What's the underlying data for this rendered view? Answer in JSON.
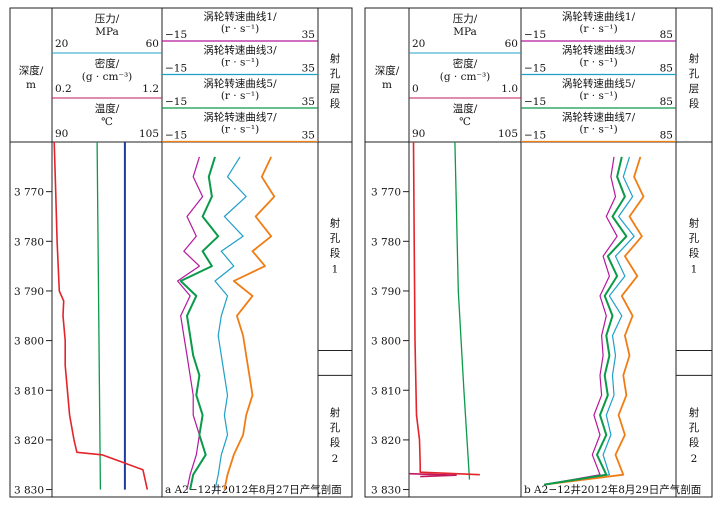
{
  "colors": {
    "pressure": "#1f3a9a",
    "density": "#c2185b",
    "temperature": "#e3242b",
    "green": "#0a9a4a",
    "rpm1": "#b5179e",
    "rpm3": "#1fa0c8",
    "rpm5": "#0a9a4a",
    "rpm7": "#f07d14",
    "pressureHdr": "#1fa0c8",
    "densityHdr": "#c2185b"
  },
  "chart_data": [
    {
      "type": "line",
      "panel": "a",
      "caption": "a  A2−12井2012年8月27日产气剖面",
      "depth": {
        "label": "深度/",
        "unit": "m",
        "ticks": [
          "3 770",
          "3 780",
          "3 790",
          "3 800",
          "3 810",
          "3 820",
          "3 830"
        ],
        "tick_values": [
          3770,
          3780,
          3790,
          3800,
          3810,
          3820,
          3830
        ],
        "range": [
          3760,
          3831.5
        ]
      },
      "tracks": {
        "pressure": {
          "label": "压力/",
          "unit": "MPa",
          "min": "20",
          "max": "60",
          "range": [
            20,
            60
          ]
        },
        "density": {
          "label": "密度/",
          "unit": "(g · cm⁻³)",
          "min": "0.2",
          "max": "1.2",
          "range": [
            0.2,
            1.2
          ]
        },
        "temperature": {
          "label": "温度/",
          "unit": "℃",
          "min": "90",
          "max": "105",
          "range": [
            90,
            105
          ]
        },
        "rpm": [
          {
            "label": "涡轮转速曲线1/",
            "unit": "(r · s⁻¹)",
            "min": "−15",
            "max": "35",
            "range": [
              -15,
              35
            ]
          },
          {
            "label": "涡轮转速曲线3/",
            "unit": "(r · s⁻¹)",
            "min": "−15",
            "max": "35",
            "range": [
              -15,
              35
            ]
          },
          {
            "label": "涡轮转速曲线5/",
            "unit": "(r · s⁻¹)",
            "min": "−15",
            "max": "35",
            "range": [
              -15,
              35
            ]
          },
          {
            "label": "涡轮转速曲线7/",
            "unit": "(r · s⁻¹)",
            "min": "−15",
            "max": "35",
            "range": [
              -15,
              35
            ]
          }
        ]
      },
      "zones_header": "射孔层段",
      "zones": [
        {
          "label_chars": [
            "射",
            "孔",
            "段"
          ],
          "index": "1",
          "top": 3760,
          "bottom": 3802
        },
        {
          "label_chars": [
            "射",
            "孔",
            "段"
          ],
          "index": "2",
          "top": 3807,
          "bottom": 3831.5
        }
      ],
      "series": {
        "pressure": {
          "depth": [
            3760,
            3830
          ],
          "value": [
            46.5,
            46.5
          ]
        },
        "green_line": {
          "depth": [
            3760,
            3830
          ],
          "value": [
            0.61,
            0.64
          ]
        },
        "temperature": {
          "depth": [
            3760,
            3770,
            3780,
            3790,
            3792,
            3795,
            3800,
            3805,
            3810,
            3815,
            3820,
            3822.5,
            3823,
            3826,
            3830
          ],
          "value": [
            90.3,
            90.5,
            90.7,
            91.0,
            91.6,
            91.5,
            91.8,
            91.8,
            92.1,
            92.4,
            93.0,
            93.4,
            96.8,
            102.4,
            103.0
          ]
        },
        "rpm1": {
          "depth": [
            3763,
            3767,
            3771,
            3775,
            3779,
            3782,
            3785,
            3788,
            3791,
            3795,
            3799,
            3803,
            3807,
            3811,
            3815,
            3819,
            3823,
            3827,
            3830
          ],
          "value": [
            -3,
            -5,
            -2,
            -7,
            -4,
            -8,
            -3,
            -10,
            -6,
            -9,
            -8,
            -7,
            -6,
            -5,
            -5,
            -3,
            -4,
            -6,
            -7
          ]
        },
        "rpm3": {
          "depth": [
            3763,
            3767,
            3771,
            3775,
            3779,
            3782,
            3785,
            3788,
            3791,
            3795,
            3799,
            3803,
            3807,
            3811,
            3815,
            3819,
            3823,
            3827,
            3830
          ],
          "value": [
            10,
            6,
            12,
            5,
            11,
            4,
            8,
            2,
            6,
            4,
            3,
            4,
            5,
            6,
            5,
            6,
            4,
            3,
            2
          ]
        },
        "rpm5": {
          "depth": [
            3763,
            3767,
            3771,
            3775,
            3779,
            3782,
            3785,
            3788,
            3791,
            3795,
            3799,
            3803,
            3807,
            3811,
            3815,
            3819,
            3823,
            3827,
            3830
          ],
          "value": [
            2,
            0,
            1,
            -2,
            3,
            -2,
            1,
            -9,
            -4,
            -7,
            -6,
            -5,
            -3,
            -4,
            -2,
            -3,
            -1,
            -5,
            -6
          ]
        },
        "rpm7": {
          "depth": [
            3763,
            3767,
            3771,
            3775,
            3779,
            3782,
            3785,
            3788,
            3791,
            3795,
            3799,
            3803,
            3807,
            3811,
            3815,
            3819,
            3823,
            3827,
            3830
          ],
          "value": [
            20,
            17,
            21,
            15,
            20,
            14,
            18,
            8,
            14,
            9,
            11,
            12,
            13,
            14,
            12,
            11,
            8,
            6,
            5
          ]
        }
      }
    },
    {
      "type": "line",
      "panel": "b",
      "caption": "b  A2−12井2012年8月29日产气剖面",
      "depth": {
        "label": "深度/",
        "unit": "m",
        "ticks": [
          "3 770",
          "3 780",
          "3 790",
          "3 800",
          "3 810",
          "3 820",
          "3 830"
        ],
        "tick_values": [
          3770,
          3780,
          3790,
          3800,
          3810,
          3820,
          3830
        ],
        "range": [
          3760,
          3831.5
        ]
      },
      "tracks": {
        "pressure": {
          "label": "压力/",
          "unit": "MPa",
          "min": "20",
          "max": "60",
          "range": [
            20,
            60
          ]
        },
        "density": {
          "label": "密度/",
          "unit": "(g · cm⁻³)",
          "min": "0",
          "max": "1.0",
          "range": [
            0,
            1.0
          ]
        },
        "temperature": {
          "label": "温度/",
          "unit": "℃",
          "min": "90",
          "max": "105",
          "range": [
            90,
            105
          ]
        },
        "rpm": [
          {
            "label": "涡轮转速曲线1/",
            "unit": "(r · s⁻¹)",
            "min": "−15",
            "max": "85",
            "range": [
              -15,
              85
            ]
          },
          {
            "label": "涡轮转速曲线3/",
            "unit": "(r · s⁻¹)",
            "min": "−15",
            "max": "85",
            "range": [
              -15,
              85
            ]
          },
          {
            "label": "涡轮转速曲线5/",
            "unit": "(r · s⁻¹)",
            "min": "−15",
            "max": "85",
            "range": [
              -15,
              85
            ]
          },
          {
            "label": "涡轮转速曲线7/",
            "unit": "(r · s⁻¹)",
            "min": "−15",
            "max": "85",
            "range": [
              -15,
              85
            ]
          }
        ]
      },
      "zones_header": "射孔层段",
      "zones": [
        {
          "label_chars": [
            "射",
            "孔",
            "段"
          ],
          "index": "1",
          "top": 3760,
          "bottom": 3802
        },
        {
          "label_chars": [
            "射",
            "孔",
            "段"
          ],
          "index": "2",
          "top": 3807,
          "bottom": 3831.5
        }
      ],
      "series": {
        "green_line": {
          "depth": [
            3760,
            3790,
            3810,
            3828
          ],
          "value": [
            0.41,
            0.44,
            0.49,
            0.54
          ]
        },
        "temperature": {
          "depth": [
            3760,
            3780,
            3800,
            3815,
            3820,
            3825,
            3826.5,
            3827
          ],
          "value": [
            90.6,
            90.7,
            90.8,
            91.0,
            91.4,
            91.5,
            91.5,
            99.5
          ]
        },
        "density_spike": {
          "depth": [
            3826.8,
            3827.1,
            3827.4
          ],
          "value": [
            0.0,
            0.42,
            0.1
          ]
        },
        "rpm1": {
          "depth": [
            3763,
            3767,
            3771,
            3775,
            3779,
            3783,
            3787,
            3791,
            3795,
            3799,
            3803,
            3807,
            3811,
            3815,
            3819,
            3823,
            3827,
            3829
          ],
          "value": [
            45,
            43,
            46,
            40,
            47,
            38,
            42,
            36,
            40,
            37,
            38,
            36,
            37,
            32,
            36,
            31,
            36,
            0
          ]
        },
        "rpm3": {
          "depth": [
            3763,
            3767,
            3771,
            3775,
            3779,
            3783,
            3787,
            3791,
            3795,
            3799,
            3803,
            3807,
            3811,
            3815,
            3819,
            3823,
            3827,
            3829
          ],
          "value": [
            55,
            51,
            57,
            48,
            58,
            46,
            52,
            42,
            50,
            44,
            46,
            44,
            45,
            40,
            43,
            38,
            42,
            0
          ]
        },
        "rpm5": {
          "depth": [
            3763,
            3767,
            3771,
            3775,
            3779,
            3783,
            3787,
            3791,
            3795,
            3799,
            3803,
            3807,
            3811,
            3815,
            3819,
            3823,
            3827,
            3829
          ],
          "value": [
            50,
            47,
            52,
            44,
            53,
            41,
            47,
            39,
            44,
            40,
            42,
            39,
            41,
            36,
            40,
            34,
            40,
            0
          ]
        },
        "rpm7": {
          "depth": [
            3763,
            3767,
            3771,
            3775,
            3779,
            3783,
            3787,
            3791,
            3795,
            3799,
            3803,
            3807,
            3811,
            3815,
            3819,
            3823,
            3827,
            3829
          ],
          "value": [
            62,
            58,
            64,
            55,
            63,
            52,
            60,
            50,
            57,
            52,
            55,
            51,
            53,
            48,
            52,
            46,
            51,
            0
          ]
        }
      }
    }
  ]
}
